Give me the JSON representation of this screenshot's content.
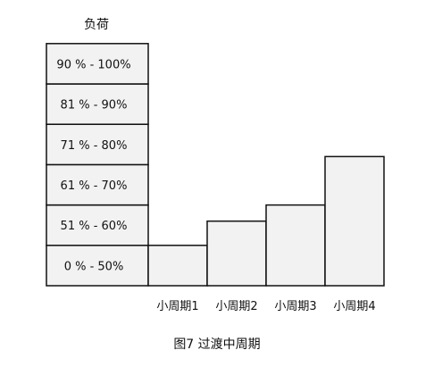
{
  "diagram": {
    "load_axis_label": "负荷",
    "caption": "图7 过渡中周期",
    "box_fill": "#f2f2f2",
    "stroke_color": "#111111"
  },
  "chart_data": {
    "type": "bar",
    "title": "",
    "ylabel": "负荷",
    "bands": [
      "0 % - 50%",
      "51 % - 60%",
      "61 % - 70%",
      "71 % - 80%",
      "81 % - 90%",
      "90 % - 100%"
    ],
    "categories": [
      "小周期1",
      "小周期2",
      "小周期3",
      "小周期4"
    ],
    "values": [
      1,
      1.6,
      2,
      3.2
    ],
    "value_unit": "band levels (0 % - 50% = 1)",
    "ylim": [
      0,
      6
    ]
  }
}
